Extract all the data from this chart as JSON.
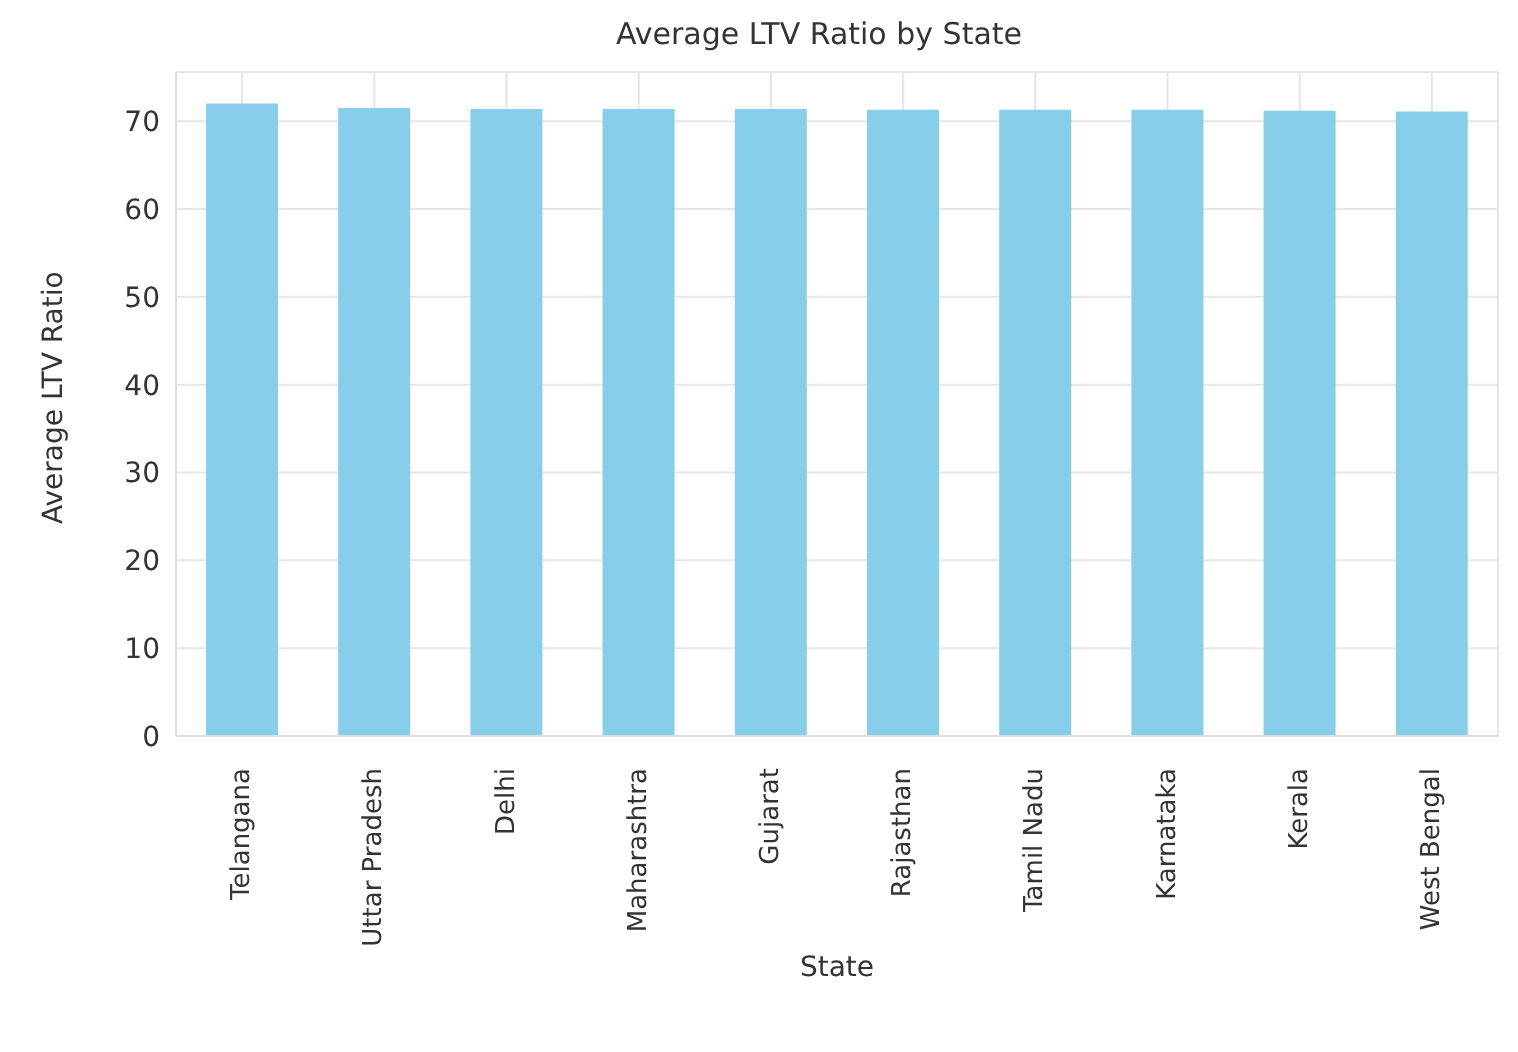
{
  "chart_data": {
    "type": "bar",
    "title": "Average LTV Ratio by State",
    "xlabel": "State",
    "ylabel": "Average LTV Ratio",
    "categories": [
      "Telangana",
      "Uttar Pradesh",
      "Delhi",
      "Maharashtra",
      "Gujarat",
      "Rajasthan",
      "Tamil Nadu",
      "Karnataka",
      "Kerala",
      "West Bengal"
    ],
    "values": [
      72.0,
      71.5,
      71.4,
      71.4,
      71.4,
      71.3,
      71.3,
      71.3,
      71.2,
      71.1
    ],
    "color": "#87ceeb",
    "ylim": [
      0,
      75.6
    ],
    "yticks": [
      0,
      10,
      20,
      30,
      40,
      50,
      60,
      70
    ],
    "grid": true
  }
}
